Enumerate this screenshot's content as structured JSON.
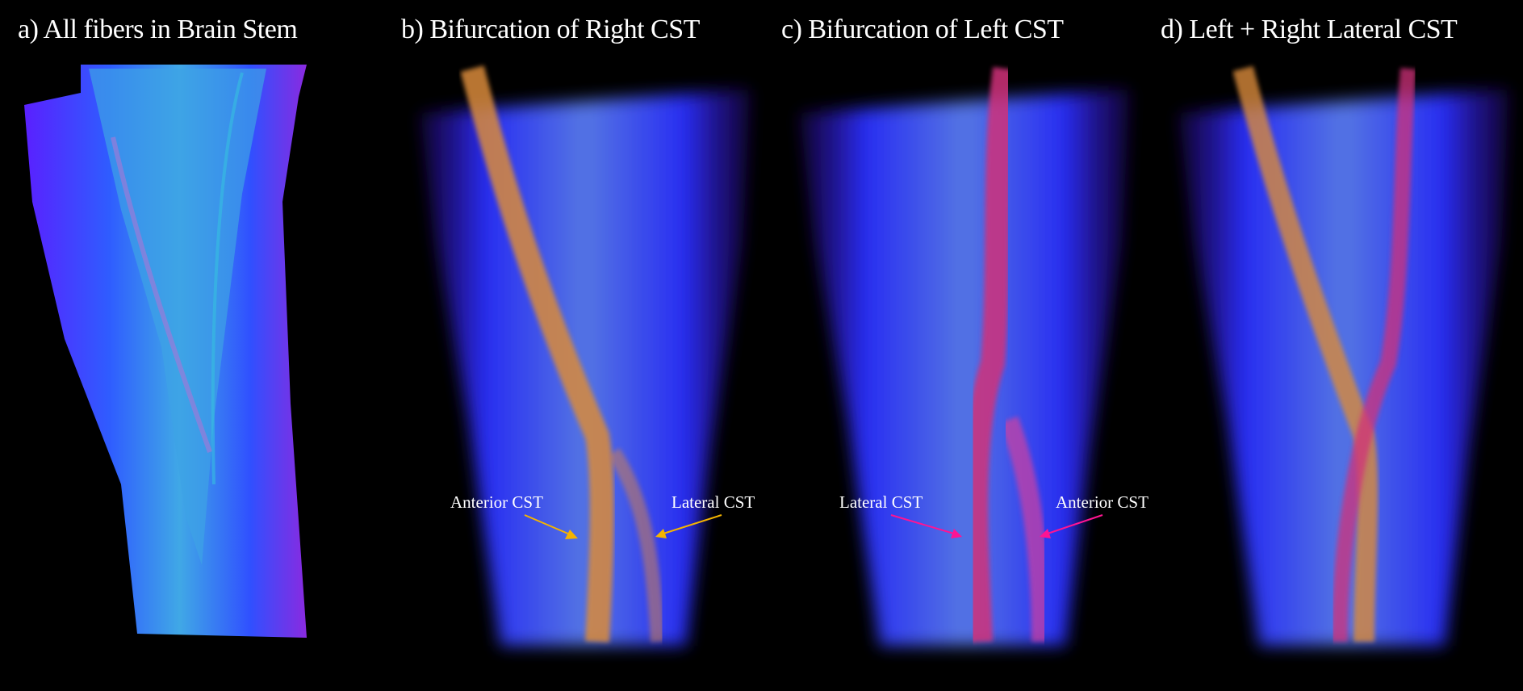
{
  "panels": [
    {
      "title": "a) All fibers in Brain Stem"
    },
    {
      "title": "b) Bifurcation of Right CST",
      "annotations": [
        "Anterior CST",
        "Lateral CST"
      ],
      "arrow_color": "#f5b400"
    },
    {
      "title": "c) Bifurcation of Left CST",
      "annotations": [
        "Lateral CST",
        "Anterior CST"
      ],
      "arrow_color": "#ff1493"
    },
    {
      "title": "d) Left + Right Lateral CST"
    }
  ],
  "colors": {
    "background": "#000000",
    "fiber_blue": "#2a3cff",
    "fiber_cyan": "#3fa8e8",
    "right_cst": "#d98a3a",
    "left_cst": "#d0307a"
  }
}
